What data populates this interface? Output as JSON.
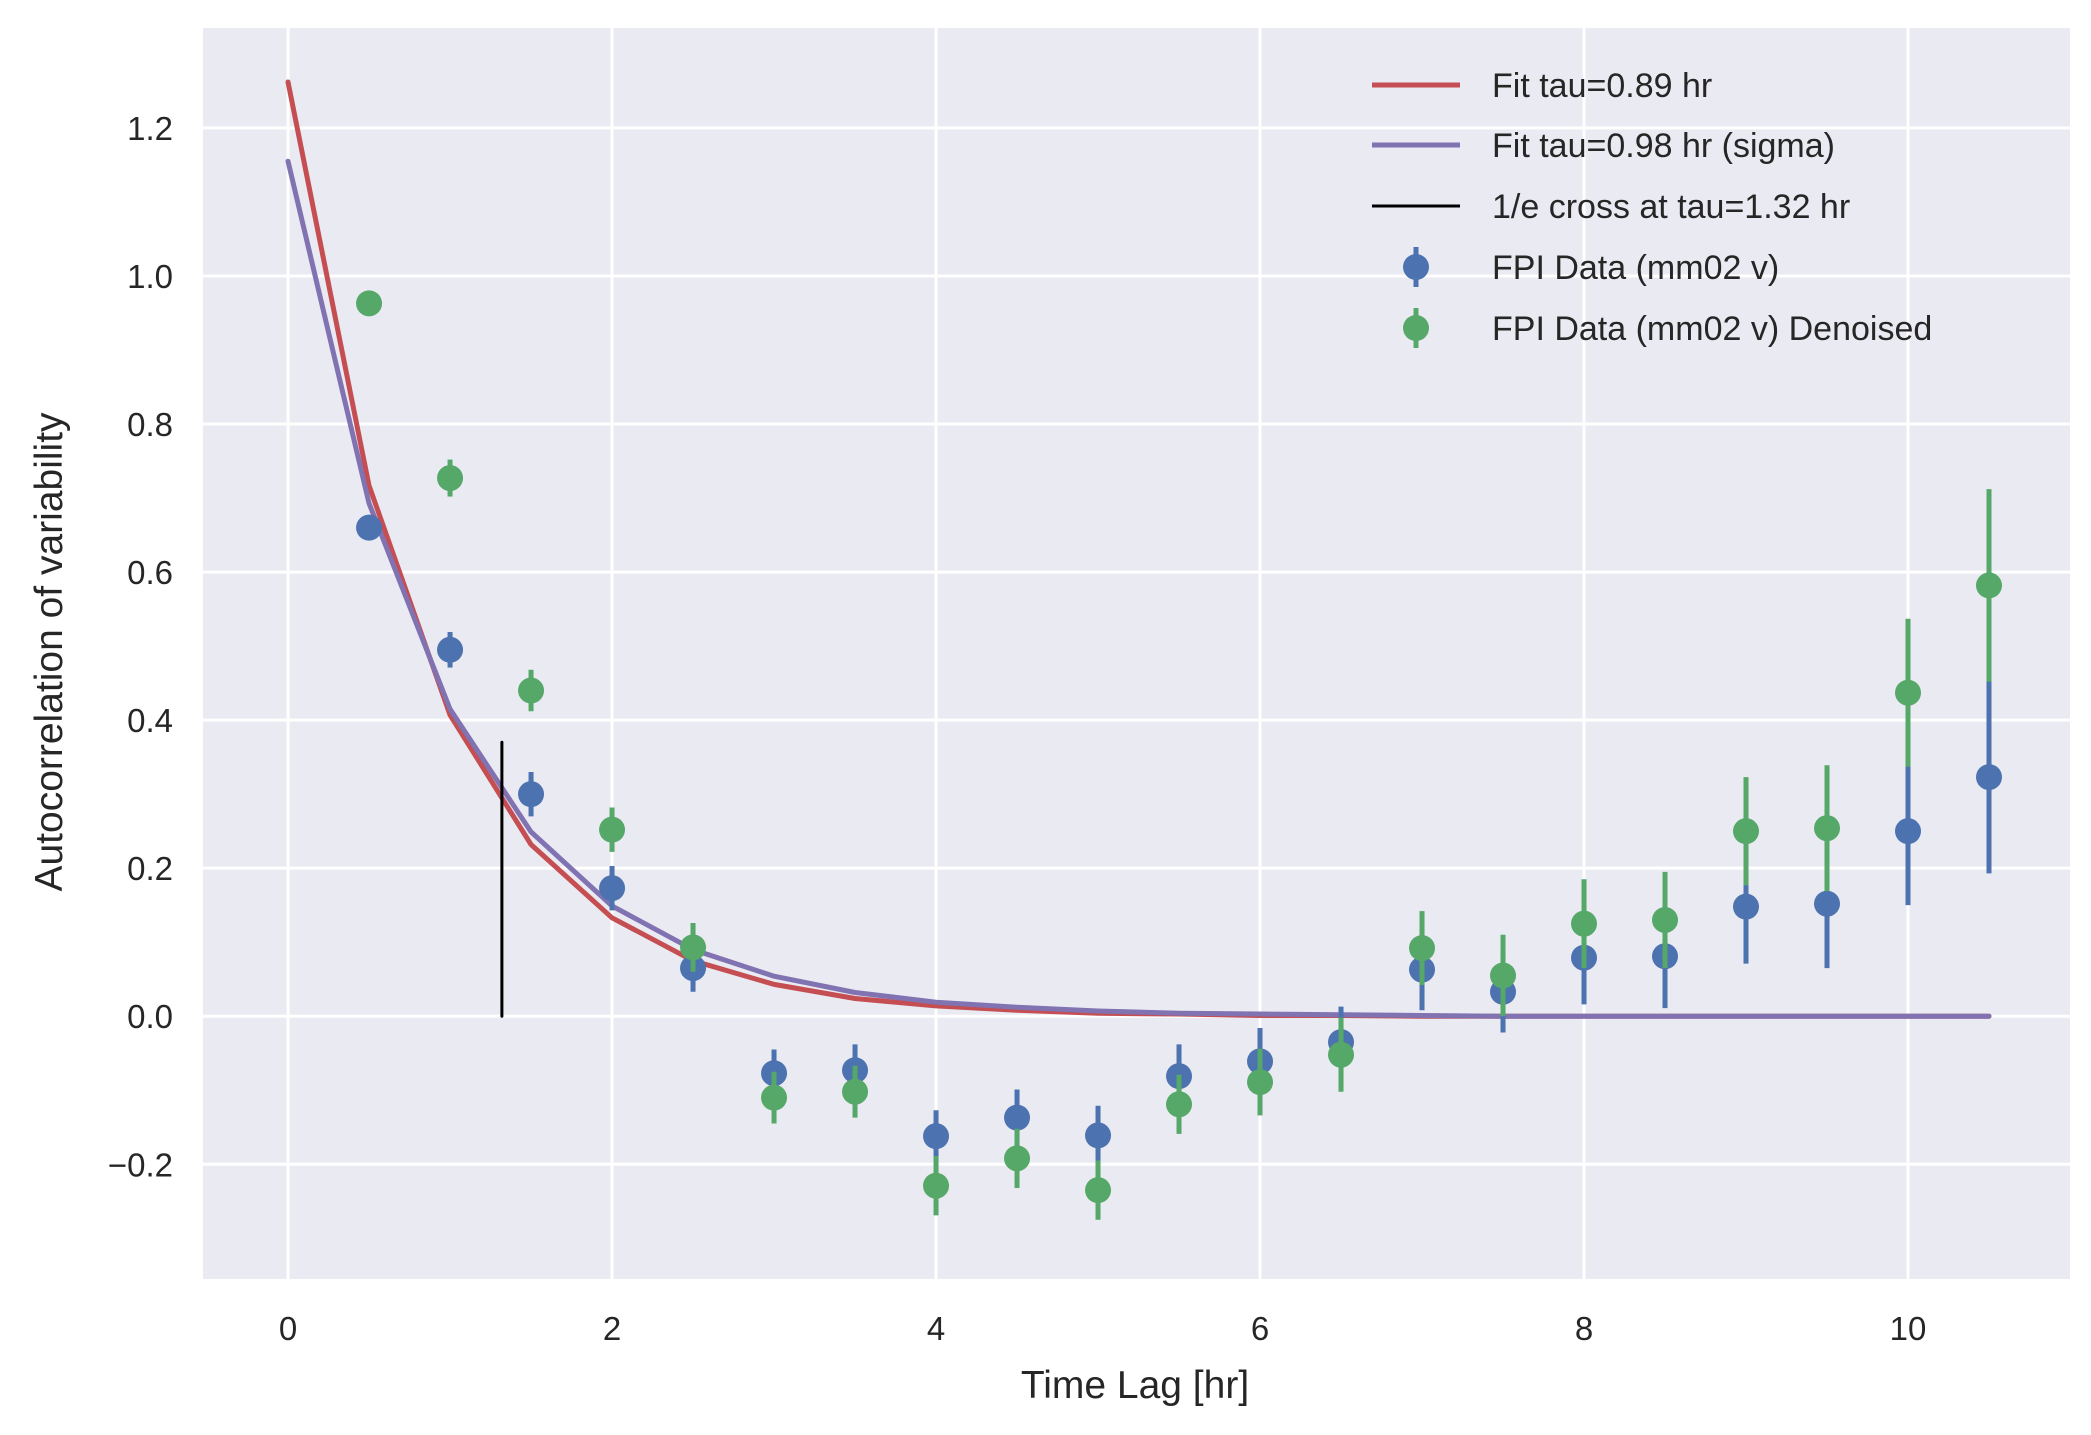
{
  "chart_data": {
    "type": "scatter",
    "xlabel": "Time Lag [hr]",
    "ylabel": "Autocorrelation of variability",
    "xlim": [
      -0.525,
      11.0
    ],
    "ylim": [
      -0.355,
      1.335
    ],
    "xticks": [
      0,
      2,
      4,
      6,
      8,
      10
    ],
    "xtick_labels": [
      "0",
      "2",
      "4",
      "6",
      "8",
      "10"
    ],
    "yticks": [
      -0.2,
      0.0,
      0.2,
      0.4,
      0.6,
      0.8,
      1.0,
      1.2
    ],
    "ytick_labels": [
      "−0.2",
      "0.0",
      "0.2",
      "0.4",
      "0.6",
      "0.8",
      "1.0",
      "1.2"
    ],
    "grid": true,
    "legend_position": "top-right",
    "colors": {
      "background": "#eaeaf2",
      "grid": "#ffffff",
      "fit": "#c44e52",
      "fit_sigma": "#8172b2",
      "cross": "#000000",
      "data": "#4c72b0",
      "denoised": "#55a868"
    },
    "lines": [
      {
        "name": "Fit tau=0.89 hr",
        "color": "#c44e52",
        "x": [
          0,
          0.5,
          1.0,
          1.5,
          2.0,
          2.5,
          3.0,
          3.5,
          4.0,
          4.5,
          5.0,
          5.5,
          6.0,
          6.5,
          7.0,
          7.5,
          8.0,
          8.5,
          9.0,
          9.5,
          10.0,
          10.5
        ],
        "y": [
          1.262,
          0.717,
          0.407,
          0.232,
          0.133,
          0.075,
          0.043,
          0.024,
          0.014,
          0.008,
          0.004,
          0.003,
          0.001,
          0.001,
          0.0,
          0.0,
          0.0,
          0.0,
          0.0,
          0.0,
          0.0,
          0.0
        ]
      },
      {
        "name": "Fit tau=0.98 hr (sigma)",
        "color": "#8172b2",
        "x": [
          0,
          0.5,
          1.0,
          1.5,
          2.0,
          2.5,
          3.0,
          3.5,
          4.0,
          4.5,
          5.0,
          5.5,
          6.0,
          6.5,
          7.0,
          7.5,
          8.0,
          8.5,
          9.0,
          9.5,
          10.0,
          10.5
        ],
        "y": [
          1.155,
          0.693,
          0.415,
          0.249,
          0.149,
          0.09,
          0.054,
          0.032,
          0.019,
          0.012,
          0.007,
          0.004,
          0.003,
          0.002,
          0.001,
          0.0,
          0.0,
          0.0,
          0.0,
          0.0,
          0.0,
          0.0
        ]
      },
      {
        "name": "1/e cross at tau=1.32 hr",
        "color": "#000000",
        "x": [
          1.32,
          1.32
        ],
        "y": [
          0.0,
          0.37
        ]
      }
    ],
    "series": [
      {
        "name": "FPI Data (mm02 v)",
        "color": "#4c72b0",
        "x": [
          0.5,
          1.0,
          1.5,
          2.0,
          2.5,
          3.0,
          3.5,
          4.0,
          4.5,
          5.0,
          5.5,
          6.0,
          6.5,
          7.0,
          7.5,
          8.0,
          8.5,
          9.0,
          9.5,
          10.0,
          10.5
        ],
        "y": [
          0.66,
          0.495,
          0.3,
          0.173,
          0.065,
          -0.077,
          -0.073,
          -0.162,
          -0.137,
          -0.161,
          -0.081,
          -0.061,
          -0.035,
          0.063,
          0.033,
          0.079,
          0.081,
          0.148,
          0.152,
          0.25,
          0.323
        ],
        "yerr": [
          0.012,
          0.024,
          0.03,
          0.03,
          0.032,
          0.032,
          0.035,
          0.035,
          0.038,
          0.04,
          0.043,
          0.045,
          0.048,
          0.055,
          0.055,
          0.063,
          0.07,
          0.077,
          0.087,
          0.1,
          0.13
        ]
      },
      {
        "name": "FPI Data (mm02 v) Denoised",
        "color": "#55a868",
        "x": [
          0.5,
          1.0,
          1.5,
          2.0,
          2.5,
          3.0,
          3.5,
          4.0,
          4.5,
          5.0,
          5.5,
          6.0,
          6.5,
          7.0,
          7.5,
          8.0,
          8.5,
          9.0,
          9.5,
          10.0,
          10.5
        ],
        "y": [
          0.963,
          0.727,
          0.44,
          0.252,
          0.093,
          -0.11,
          -0.102,
          -0.229,
          -0.192,
          -0.235,
          -0.119,
          -0.089,
          -0.052,
          0.092,
          0.055,
          0.125,
          0.13,
          0.25,
          0.254,
          0.437,
          0.582
        ],
        "yerr": [
          0.01,
          0.025,
          0.028,
          0.03,
          0.033,
          0.035,
          0.035,
          0.04,
          0.04,
          0.04,
          0.04,
          0.045,
          0.05,
          0.05,
          0.055,
          0.06,
          0.065,
          0.073,
          0.085,
          0.1,
          0.13
        ]
      }
    ]
  },
  "legend": [
    {
      "label": "Fit tau=0.89 hr",
      "kind": "line",
      "color": "#c44e52"
    },
    {
      "label": "Fit tau=0.98 hr (sigma)",
      "kind": "line",
      "color": "#8172b2"
    },
    {
      "label": "1/e cross at tau=1.32 hr",
      "kind": "thin-line",
      "color": "#000000"
    },
    {
      "label": "FPI Data (mm02 v)",
      "kind": "errorbar",
      "color": "#4c72b0"
    },
    {
      "label": "FPI Data (mm02 v) Denoised",
      "kind": "errorbar",
      "color": "#55a868"
    }
  ]
}
